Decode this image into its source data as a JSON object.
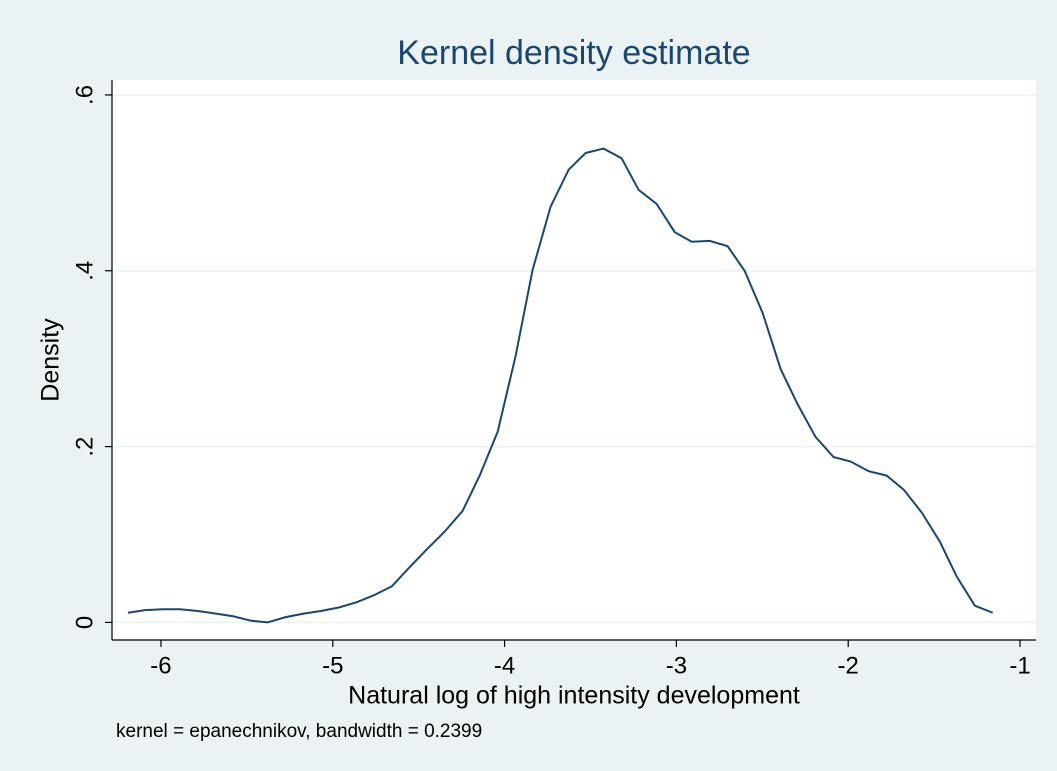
{
  "chart_data": {
    "type": "line",
    "title": "Kernel density estimate",
    "x_label": "Natural log of high intensity development",
    "y_label": "Density",
    "note": "kernel = epanechnikov, bandwidth = 0.2399",
    "x": [
      -6.192,
      -6.093,
      -5.99,
      -5.89,
      -5.785,
      -5.68,
      -5.58,
      -5.477,
      -5.38,
      -5.274,
      -5.17,
      -5.07,
      -4.965,
      -4.86,
      -4.76,
      -4.657,
      -4.552,
      -4.453,
      -4.35,
      -4.244,
      -4.145,
      -4.04,
      -3.936,
      -3.837,
      -3.732,
      -3.627,
      -3.528,
      -3.424,
      -3.319,
      -3.22,
      -3.115,
      -3.01,
      -2.911,
      -2.806,
      -2.702,
      -2.603,
      -2.498,
      -2.393,
      -2.294,
      -2.19,
      -2.085,
      -1.986,
      -1.881,
      -1.776,
      -1.677,
      -1.572,
      -1.467,
      -1.368,
      -1.263,
      -1.159
    ],
    "series": [
      {
        "color": "#1a476f",
        "values": [
          0.011,
          0.014,
          0.015,
          0.015,
          0.013,
          0.01,
          0.007,
          0.002,
          0.0,
          0.006,
          0.01,
          0.013,
          0.017,
          0.023,
          0.031,
          0.041,
          0.063,
          0.083,
          0.103,
          0.127,
          0.167,
          0.217,
          0.303,
          0.401,
          0.473,
          0.515,
          0.534,
          0.539,
          0.528,
          0.492,
          0.476,
          0.444,
          0.433,
          0.434,
          0.428,
          0.4,
          0.352,
          0.288,
          0.248,
          0.211,
          0.188,
          0.183,
          0.172,
          0.167,
          0.151,
          0.125,
          0.092,
          0.052,
          0.019,
          0.011
        ]
      }
    ],
    "xlim": [
      -6.285,
      -0.907
    ],
    "ylim": [
      -0.02,
      0.617
    ],
    "xticks": [
      -6,
      -5,
      -4,
      -3,
      -2,
      -1
    ],
    "yticks": [
      0,
      {
        "value": 0.2,
        "label": ".2"
      },
      {
        "value": 0.4,
        "label": ".4"
      },
      {
        "value": 0.6,
        "label": ".6"
      }
    ],
    "grid": true
  }
}
